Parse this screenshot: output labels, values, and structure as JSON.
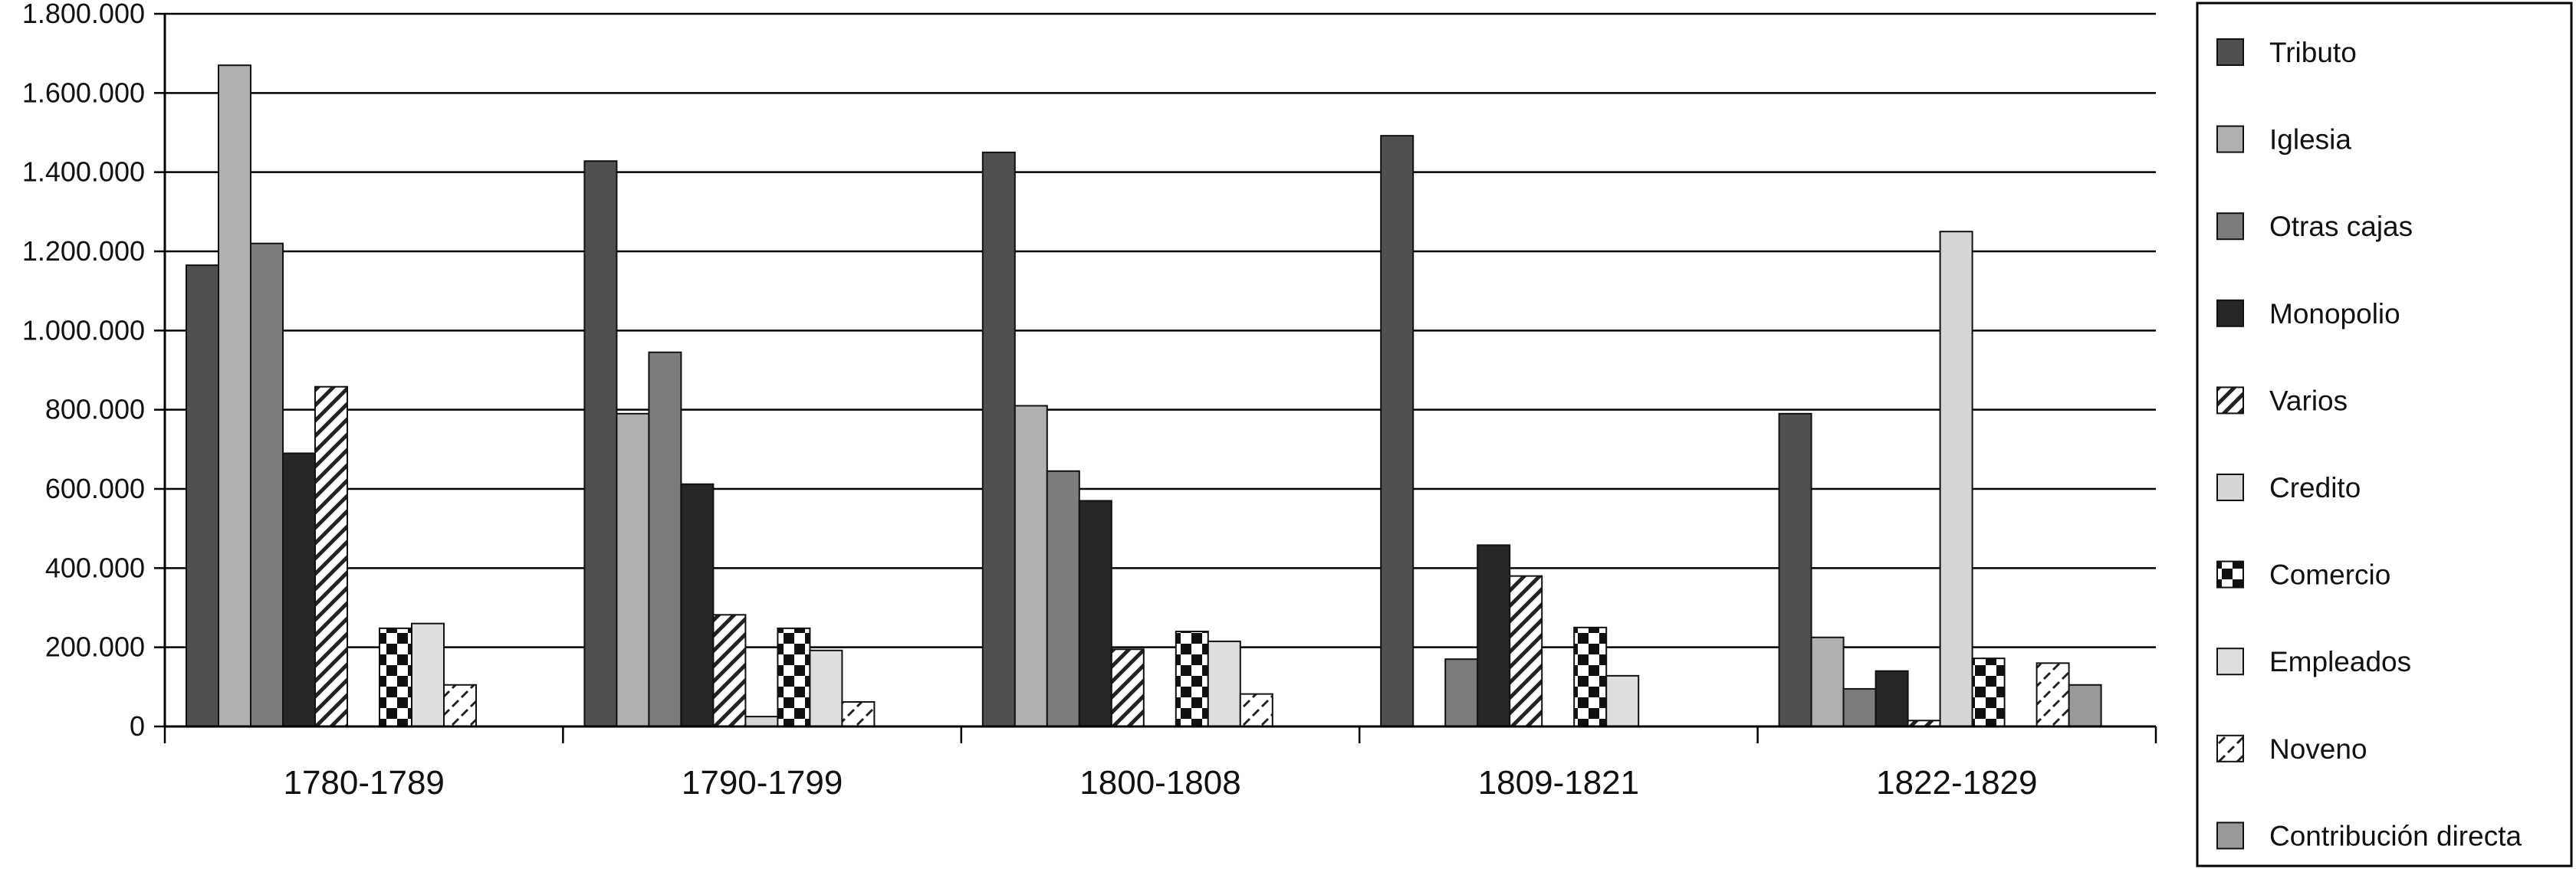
{
  "chart_data": {
    "type": "bar",
    "categories": [
      "1780-1789",
      "1790-1799",
      "1800-1808",
      "1809-1821",
      "1822-1829"
    ],
    "ylim": [
      0,
      1800000
    ],
    "yticks": [
      0,
      200000,
      400000,
      600000,
      800000,
      1000000,
      1200000,
      1400000,
      1600000,
      1800000
    ],
    "ytick_labels": [
      "0",
      "200.000",
      "400.000",
      "600.000",
      "800.000",
      "1.000.000",
      "1.200.000",
      "1.400.000",
      "1.600.000",
      "1.800.000"
    ],
    "grid": "horizontal",
    "legend_position": "right",
    "series": [
      {
        "name": "Tributo",
        "values": [
          1165000,
          1428000,
          1450000,
          1492000,
          790000
        ]
      },
      {
        "name": "Iglesia",
        "values": [
          1670000,
          790000,
          810000,
          0,
          225000
        ]
      },
      {
        "name": "Otras  cajas",
        "values": [
          1220000,
          945000,
          645000,
          170000,
          95000
        ]
      },
      {
        "name": "Monopolio",
        "values": [
          690000,
          612000,
          570000,
          458000,
          140000
        ]
      },
      {
        "name": "Varios",
        "values": [
          858000,
          282000,
          195000,
          380000,
          15000
        ]
      },
      {
        "name": "Credito",
        "values": [
          0,
          25000,
          0,
          0,
          1250000
        ]
      },
      {
        "name": "Comercio",
        "values": [
          248000,
          248000,
          240000,
          250000,
          172000
        ]
      },
      {
        "name": "Empleados",
        "values": [
          260000,
          192000,
          215000,
          128000,
          0
        ]
      },
      {
        "name": "Noveno",
        "values": [
          105000,
          62000,
          82000,
          0,
          160000
        ]
      },
      {
        "name": "Contribución directa",
        "values": [
          0,
          0,
          0,
          0,
          105000
        ]
      }
    ],
    "series_fills": [
      {
        "type": "solid",
        "color": "#505050"
      },
      {
        "type": "solid",
        "color": "#b0b0b0"
      },
      {
        "type": "solid",
        "color": "#7c7c7c"
      },
      {
        "type": "solid",
        "color": "#262626"
      },
      {
        "type": "pattern",
        "pattern": "diagonal-stripes"
      },
      {
        "type": "solid",
        "color": "#d6d6d6"
      },
      {
        "type": "pattern",
        "pattern": "checker"
      },
      {
        "type": "solid",
        "color": "#dedede"
      },
      {
        "type": "pattern",
        "pattern": "diagonal-dashes"
      },
      {
        "type": "solid",
        "color": "#999999"
      }
    ],
    "legend_entries": [
      "Tributo",
      "Iglesia",
      "Otras  cajas",
      "Monopolio",
      "Varios",
      "Credito",
      "Comercio",
      "Empleados",
      "Noveno",
      "Contribución directa"
    ]
  }
}
